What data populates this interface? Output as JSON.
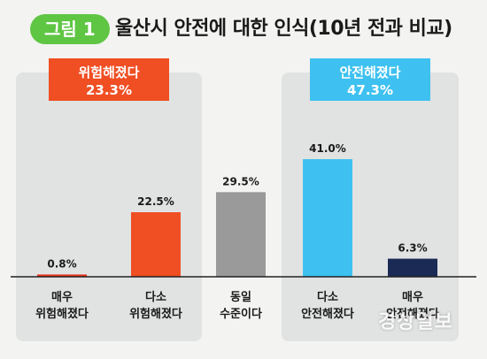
{
  "header": {
    "badge": "그림 1",
    "title": "울산시 안전에 대한 인식(10년 전과 비교)"
  },
  "groups": [
    {
      "label": "위험해졌다",
      "value": "23.3%",
      "color": "#f04e23",
      "start": 0,
      "end": 1
    },
    {
      "label": "안전해졌다",
      "value": "47.3%",
      "color": "#3ec1f0",
      "start": 3,
      "end": 4
    }
  ],
  "watermark": "경상일보",
  "chart_data": {
    "type": "bar",
    "title": "울산시 안전에 대한 인식(10년 전과 비교)",
    "categories": [
      "매우\n위험해졌다",
      "다소\n위험해졌다",
      "동일\n수준이다",
      "다소\n안전해졌다",
      "매우\n안전해졌다"
    ],
    "values": [
      0.8,
      22.5,
      29.5,
      41.0,
      6.3
    ],
    "value_labels": [
      "0.8%",
      "22.5%",
      "29.5%",
      "41.0%",
      "6.3%"
    ],
    "colors": [
      "#e8341c",
      "#f04e23",
      "#9a9a9a",
      "#3ec1f0",
      "#1b2a55"
    ],
    "ylim": [
      0,
      45
    ],
    "grid": false
  }
}
